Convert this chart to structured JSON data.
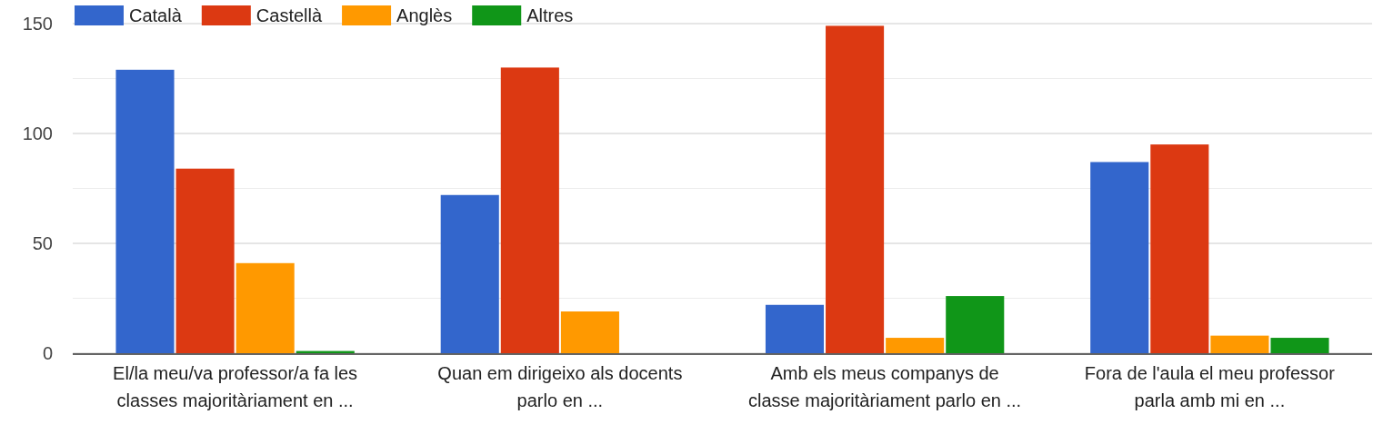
{
  "chart_data": {
    "type": "bar",
    "categories": [
      "El/la meu/va professor/a fa les classes majoritàriament en ...",
      "Quan em dirigeixo als docents parlo en ...",
      "Amb els meus companys de classe majoritàriament parlo en ...",
      "Fora de l'aula el meu professor parla amb mi en ..."
    ],
    "series": [
      {
        "name": "Català",
        "color": "#3366cc",
        "values": [
          129,
          72,
          22,
          87
        ]
      },
      {
        "name": "Castellà",
        "color": "#dc3912",
        "values": [
          84,
          130,
          149,
          95
        ]
      },
      {
        "name": "Anglès",
        "color": "#ff9900",
        "values": [
          41,
          19,
          7,
          8
        ]
      },
      {
        "name": "Altres",
        "color": "#109618",
        "values": [
          1,
          0,
          26,
          7
        ]
      }
    ],
    "ylim": [
      0,
      150
    ],
    "yticks": [
      0,
      {
        "value": 25,
        "label": null
      },
      50,
      {
        "value": 75,
        "label": null
      },
      100,
      {
        "value": 125,
        "label": null
      },
      150
    ],
    "grid": true,
    "legend": "top left"
  }
}
